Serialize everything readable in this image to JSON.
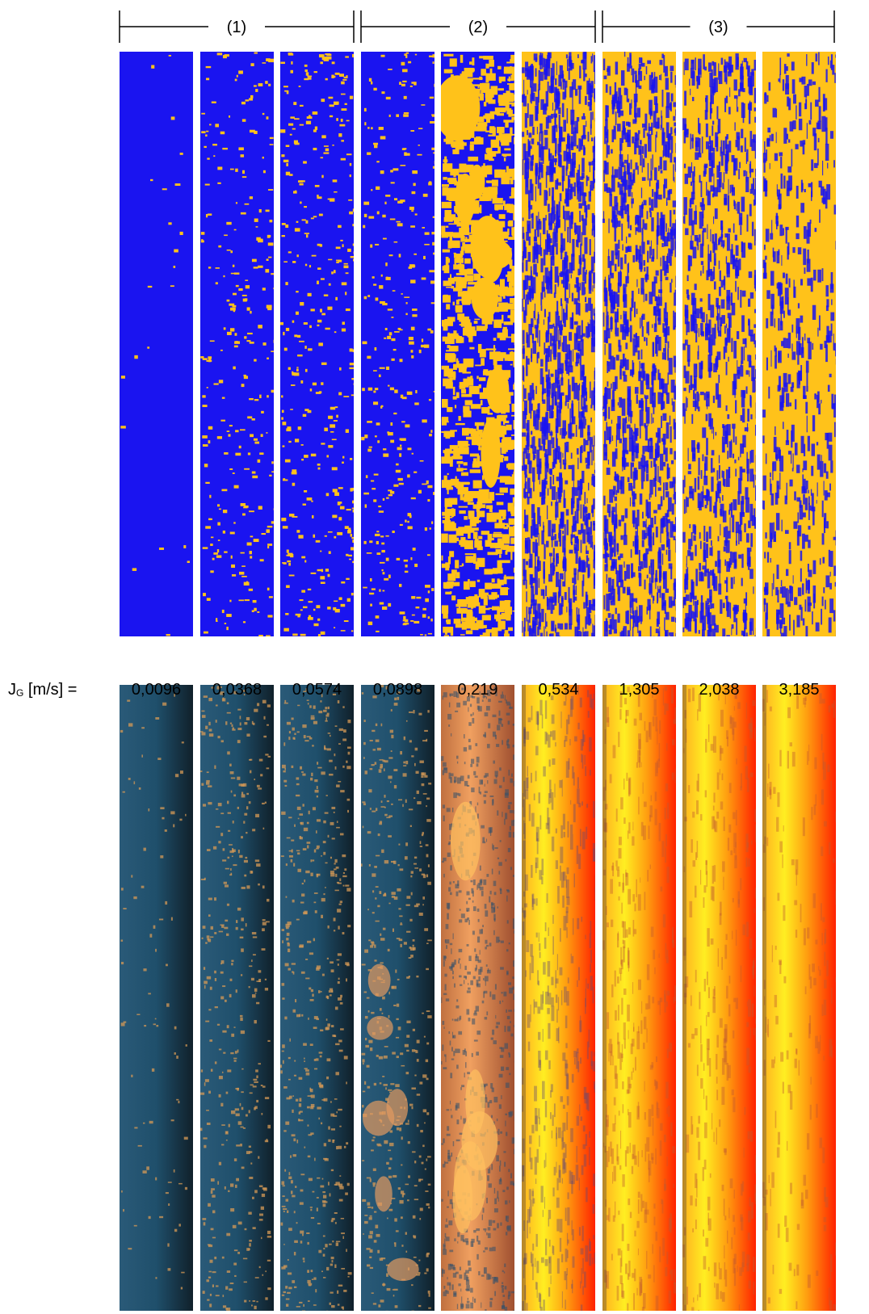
{
  "groups": [
    {
      "label": "(1)"
    },
    {
      "label": "(2)"
    },
    {
      "label": "(3)"
    }
  ],
  "jg_label": {
    "main": "J",
    "sub": "G",
    "rest": " [m/s] ="
  },
  "columns": [
    {
      "value": "0,0096",
      "top_fill": 0.01,
      "bottom_style": "dark"
    },
    {
      "value": "0,0368",
      "top_fill": 0.12,
      "bottom_style": "dark"
    },
    {
      "value": "0,0574",
      "top_fill": 0.16,
      "bottom_style": "dark"
    },
    {
      "value": "0,0898",
      "top_fill": 0.14,
      "bottom_style": "dark"
    },
    {
      "value": "0,219",
      "top_fill": 0.45,
      "bottom_style": "orange"
    },
    {
      "value": "0,534",
      "top_fill": 0.55,
      "bottom_style": "bright"
    },
    {
      "value": "1,305",
      "top_fill": 0.62,
      "bottom_style": "bright"
    },
    {
      "value": "2,038",
      "top_fill": 0.7,
      "bottom_style": "bright"
    },
    {
      "value": "3,185",
      "top_fill": 0.82,
      "bottom_style": "bright"
    }
  ],
  "colors": {
    "liquid": "#1a14f0",
    "gas": "#ffc21a",
    "dark_base": "#1f4f6b",
    "speck": "#d69a55",
    "bright_yellow": "#ffee22",
    "bright_red": "#ff2200"
  }
}
